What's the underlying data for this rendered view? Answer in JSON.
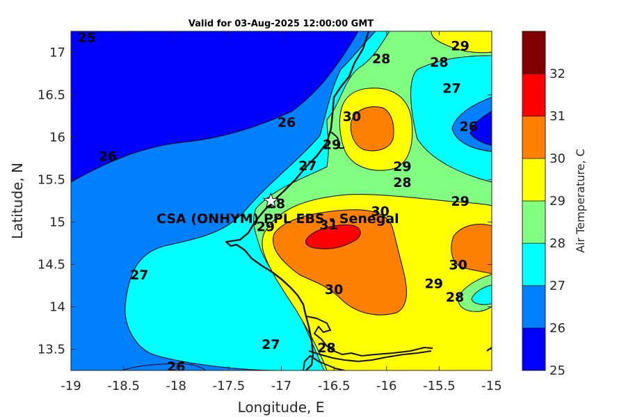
{
  "title": "Valid for 03-Aug-2025 12:00:00 GMT",
  "xlabel": "Longitude, E",
  "ylabel": "Latitude, N",
  "x_ticks": [
    "-19",
    "-18.5",
    "-18",
    "-17.5",
    "-17",
    "-16.5",
    "-16",
    "-15.5",
    "-15"
  ],
  "y_ticks": [
    "13.5",
    "14",
    "14.5",
    "15",
    "15.5",
    "16",
    "16.5",
    "17"
  ],
  "colorbar": {
    "label": "Air Temperature, C",
    "ticks": [
      "25",
      "26",
      "27",
      "28",
      "29",
      "30",
      "31",
      "32"
    ],
    "colors": [
      "#0000ff",
      "#0080ff",
      "#00ffff",
      "#80ff80",
      "#ffff00",
      "#ff8000",
      "#ff0000",
      "#800000"
    ]
  },
  "site": {
    "name": "CSA (ONHYM) PPL EBS  - Senegal",
    "lon": -17.1,
    "lat": 15.25,
    "marker": "star-icon"
  },
  "contour_labels": [
    {
      "text": "25",
      "lon": -18.85,
      "lat": 17.18
    },
    {
      "text": "26",
      "lon": -18.65,
      "lat": 15.78
    },
    {
      "text": "26",
      "lon": -16.95,
      "lat": 16.18
    },
    {
      "text": "26",
      "lon": -15.22,
      "lat": 16.13
    },
    {
      "text": "26",
      "lon": -18.0,
      "lat": 13.3
    },
    {
      "text": "27",
      "lon": -16.75,
      "lat": 15.67
    },
    {
      "text": "27",
      "lon": -15.38,
      "lat": 16.58
    },
    {
      "text": "27",
      "lon": -18.35,
      "lat": 14.38
    },
    {
      "text": "27",
      "lon": -17.1,
      "lat": 13.56
    },
    {
      "text": "28",
      "lon": -16.05,
      "lat": 16.93
    },
    {
      "text": "28",
      "lon": -15.5,
      "lat": 16.89
    },
    {
      "text": "28",
      "lon": -17.05,
      "lat": 15.22
    },
    {
      "text": "28",
      "lon": -15.85,
      "lat": 15.47
    },
    {
      "text": "28",
      "lon": -15.35,
      "lat": 14.12
    },
    {
      "text": "28",
      "lon": -16.57,
      "lat": 13.52
    },
    {
      "text": "29",
      "lon": -15.3,
      "lat": 17.08
    },
    {
      "text": "29",
      "lon": -16.52,
      "lat": 15.92
    },
    {
      "text": "29",
      "lon": -15.85,
      "lat": 15.66
    },
    {
      "text": "29",
      "lon": -15.3,
      "lat": 15.25
    },
    {
      "text": "29",
      "lon": -17.15,
      "lat": 14.95
    },
    {
      "text": "29",
      "lon": -15.55,
      "lat": 14.28
    },
    {
      "text": "30",
      "lon": -16.33,
      "lat": 16.25
    },
    {
      "text": "30",
      "lon": -16.06,
      "lat": 15.13
    },
    {
      "text": "30",
      "lon": -15.32,
      "lat": 14.5
    },
    {
      "text": "30",
      "lon": -16.5,
      "lat": 14.21
    },
    {
      "text": "31",
      "lon": -16.55,
      "lat": 14.97
    }
  ]
}
